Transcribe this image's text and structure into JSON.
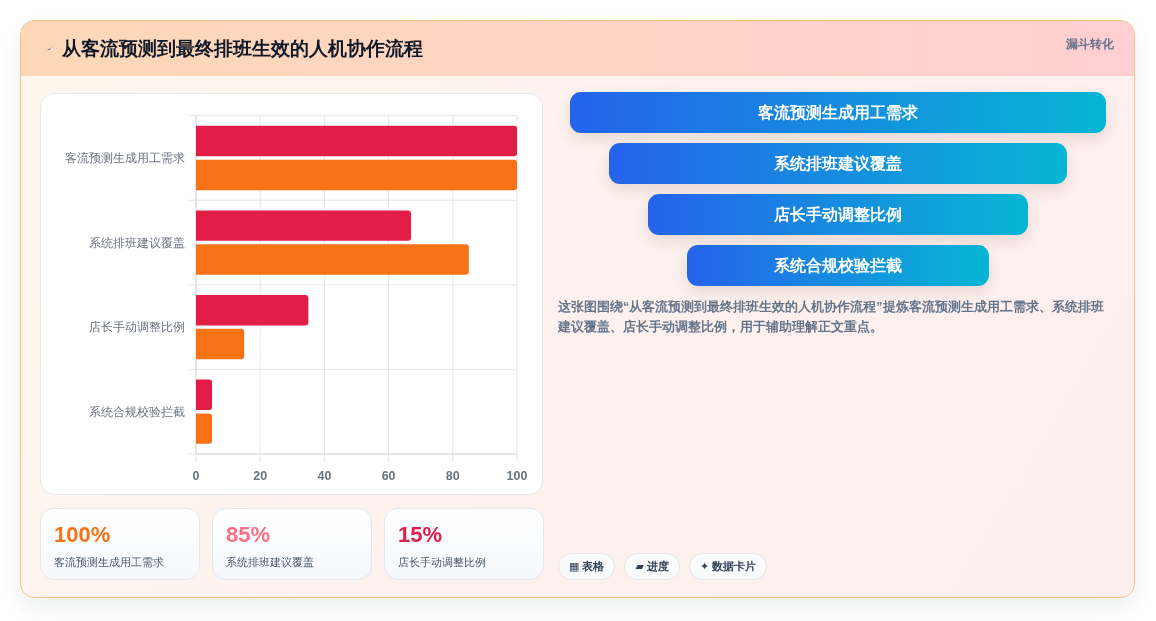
{
  "chart_data": [
    {
      "type": "bar",
      "orientation": "horizontal",
      "title": "从客流预测到最终排班生效的人机协作流程",
      "categories": [
        "客流预测生成用工需求",
        "系统排班建议覆盖",
        "店长手动调整比例",
        "系统合规校验拦截"
      ],
      "series": [
        {
          "color": "#e11d48",
          "values": [
            100,
            67,
            35,
            5
          ]
        },
        {
          "color": "#f97316",
          "values": [
            100,
            85,
            15,
            5
          ]
        }
      ],
      "xlim": [
        0,
        100
      ],
      "xticks": [
        0,
        20,
        40,
        60,
        80,
        100
      ],
      "grid": true
    },
    {
      "type": "other",
      "title": "漏斗转化",
      "categories": [
        "客流预测生成用工需求",
        "系统排班建议覆盖",
        "店长手动调整比例",
        "系统合规校验拦截"
      ],
      "annotations": [
        "这张图围绕“从客流预测到最终排班生效的人机协作流程”提炼客流预测生成用工需求、系统排班建议覆盖、店长手动调整比例，用于辅助理解正文重点。",
        "▦ 表格",
        "▰ 进度",
        "✦ 数据卡片"
      ]
    },
    {
      "type": "other",
      "categories": [
        "客流预测生成用工需求",
        "系统排班建议覆盖",
        "店长手动调整比例"
      ],
      "value_labels": [
        "100%",
        "85%",
        "15%"
      ]
    }
  ]
}
